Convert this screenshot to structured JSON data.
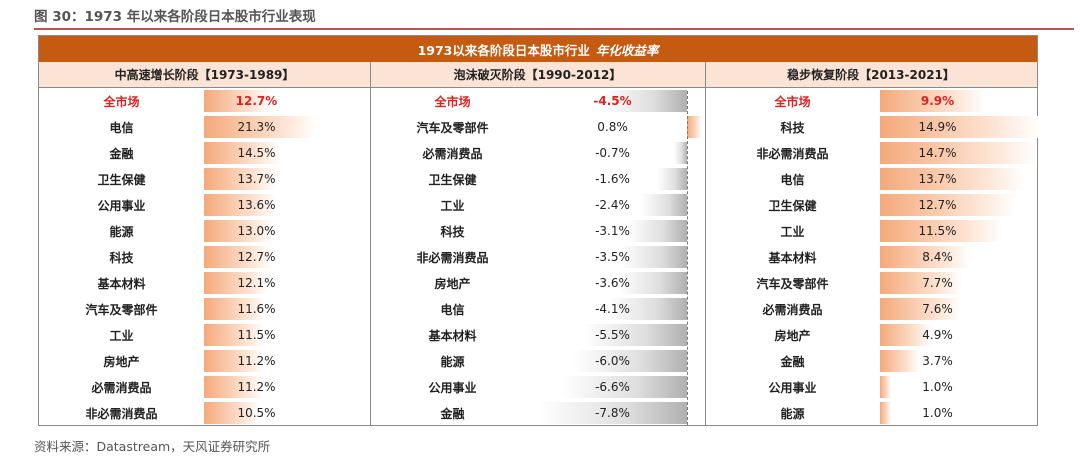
{
  "figure_title": "图 30：1973 年以来各阶段日本股市行业表现",
  "source": "资料来源：Datastream，天风证券研究所",
  "chart_data": {
    "type": "table",
    "title": "1973以来各阶段日本股市行业",
    "title_suffix": "年化收益率",
    "panels": [
      {
        "header": "中高速增长阶段【1973-1989】",
        "rows": [
          {
            "name": "全市场",
            "value": 12.7,
            "label": "12.7%",
            "market": true
          },
          {
            "name": "电信",
            "value": 21.3,
            "label": "21.3%"
          },
          {
            "name": "金融",
            "value": 14.5,
            "label": "14.5%"
          },
          {
            "name": "卫生保健",
            "value": 13.7,
            "label": "13.7%"
          },
          {
            "name": "公用事业",
            "value": 13.6,
            "label": "13.6%"
          },
          {
            "name": "能源",
            "value": 13.0,
            "label": "13.0%"
          },
          {
            "name": "科技",
            "value": 12.7,
            "label": "12.7%"
          },
          {
            "name": "基本材料",
            "value": 12.1,
            "label": "12.1%"
          },
          {
            "name": "汽车及零部件",
            "value": 11.6,
            "label": "11.6%"
          },
          {
            "name": "工业",
            "value": 11.5,
            "label": "11.5%"
          },
          {
            "name": "房地产",
            "value": 11.2,
            "label": "11.2%"
          },
          {
            "name": "必需消费品",
            "value": 11.2,
            "label": "11.2%"
          },
          {
            "name": "非必需消费品",
            "value": 10.5,
            "label": "10.5%"
          }
        ]
      },
      {
        "header": "泡沫破灭阶段【1990-2012】",
        "rows": [
          {
            "name": "全市场",
            "value": -4.5,
            "label": "-4.5%",
            "market": true
          },
          {
            "name": "汽车及零部件",
            "value": 0.8,
            "label": "0.8%"
          },
          {
            "name": "必需消费品",
            "value": -0.7,
            "label": "-0.7%"
          },
          {
            "name": "卫生保健",
            "value": -1.6,
            "label": "-1.6%"
          },
          {
            "name": "工业",
            "value": -2.4,
            "label": "-2.4%"
          },
          {
            "name": "科技",
            "value": -3.1,
            "label": "-3.1%"
          },
          {
            "name": "非必需消费品",
            "value": -3.5,
            "label": "-3.5%"
          },
          {
            "name": "房地产",
            "value": -3.6,
            "label": "-3.6%"
          },
          {
            "name": "电信",
            "value": -4.1,
            "label": "-4.1%"
          },
          {
            "name": "基本材料",
            "value": -5.5,
            "label": "-5.5%"
          },
          {
            "name": "能源",
            "value": -6.0,
            "label": "-6.0%"
          },
          {
            "name": "公用事业",
            "value": -6.6,
            "label": "-6.6%"
          },
          {
            "name": "金融",
            "value": -7.8,
            "label": "-7.8%"
          }
        ]
      },
      {
        "header": "稳步恢复阶段【2013-2021】",
        "rows": [
          {
            "name": "全市场",
            "value": 9.9,
            "label": "9.9%",
            "market": true
          },
          {
            "name": "科技",
            "value": 14.9,
            "label": "14.9%"
          },
          {
            "name": "非必需消费品",
            "value": 14.7,
            "label": "14.7%"
          },
          {
            "name": "电信",
            "value": 13.7,
            "label": "13.7%"
          },
          {
            "name": "卫生保健",
            "value": 12.7,
            "label": "12.7%"
          },
          {
            "name": "工业",
            "value": 11.5,
            "label": "11.5%"
          },
          {
            "name": "基本材料",
            "value": 8.4,
            "label": "8.4%"
          },
          {
            "name": "汽车及零部件",
            "value": 7.7,
            "label": "7.7%"
          },
          {
            "name": "必需消费品",
            "value": 7.6,
            "label": "7.6%"
          },
          {
            "name": "房地产",
            "value": 4.9,
            "label": "4.9%"
          },
          {
            "name": "金融",
            "value": 3.7,
            "label": "3.7%"
          },
          {
            "name": "公用事业",
            "value": 1.0,
            "label": "1.0%"
          },
          {
            "name": "能源",
            "value": 1.0,
            "label": "1.0%"
          }
        ]
      }
    ],
    "colors": {
      "header_bg": "#c55a11",
      "subheader_bg": "#fbe3d5",
      "positive_bar": "#f4a97a",
      "negative_bar": "#b0b0b0",
      "market_text": "#e02020"
    }
  }
}
